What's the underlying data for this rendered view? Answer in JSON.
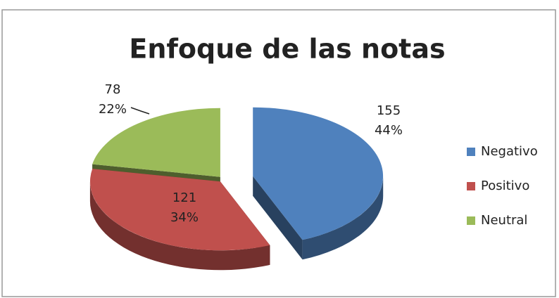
{
  "chart_data": {
    "type": "pie3d",
    "title": "Enfoque de las notas",
    "categories": [
      "Negativo",
      "Positivo",
      "Neutral"
    ],
    "values": [
      155,
      121,
      78
    ],
    "percent_labels": [
      "44%",
      "34%",
      "22%"
    ],
    "colors": [
      "#4f81bd",
      "#c0504d",
      "#9bbb59"
    ],
    "legend": "right"
  }
}
